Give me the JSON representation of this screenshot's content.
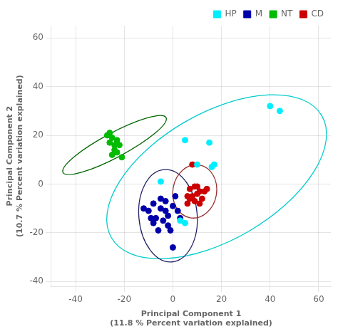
{
  "chart_data": {
    "type": "scatter",
    "xlabel": "Principal Component 1",
    "xlabel_sub": "(11.8 % Percent variation explained)",
    "ylabel": "Principal Component 2",
    "ylabel_sub": "(10.7 % Percent variation explained)",
    "xlim": [
      -50,
      65
    ],
    "ylim": [
      -42,
      65
    ],
    "xticks": [
      -40,
      -20,
      0,
      20,
      40,
      60
    ],
    "yticks": [
      -40,
      -20,
      0,
      20,
      40,
      60
    ],
    "grid": true,
    "legend": "upper right",
    "series": [
      {
        "name": "HP",
        "color": "#00EEFF",
        "values": [
          [
            -5,
            1
          ],
          [
            5,
            18
          ],
          [
            15,
            17
          ],
          [
            10,
            8
          ],
          [
            17,
            8
          ],
          [
            16,
            7
          ],
          [
            40,
            32
          ],
          [
            44,
            30
          ],
          [
            3,
            -15
          ],
          [
            5,
            -16
          ]
        ]
      },
      {
        "name": "M",
        "color": "#0000AA",
        "values": [
          [
            -8,
            -8
          ],
          [
            -5,
            -10
          ],
          [
            -3,
            -11
          ],
          [
            -10,
            -11
          ],
          [
            -7,
            -14
          ],
          [
            -4,
            -15
          ],
          [
            -2,
            -17
          ],
          [
            -6,
            -19
          ],
          [
            -1,
            -19
          ],
          [
            0,
            -26
          ],
          [
            -12,
            -10
          ],
          [
            -8,
            -16
          ],
          [
            -3,
            -7
          ],
          [
            0,
            -9
          ],
          [
            2,
            -11
          ],
          [
            3,
            -14
          ],
          [
            -5,
            -6
          ],
          [
            1,
            -5
          ],
          [
            -2,
            -13
          ],
          [
            -9,
            -14
          ]
        ]
      },
      {
        "name": "NT",
        "color": "#00BB00",
        "values": [
          [
            -25,
            19
          ],
          [
            -27,
            20
          ],
          [
            -26,
            17
          ],
          [
            -22,
            16
          ],
          [
            -24,
            14
          ],
          [
            -23,
            13
          ],
          [
            -25,
            12
          ],
          [
            -21,
            11
          ],
          [
            -23,
            18
          ],
          [
            -26,
            21
          ],
          [
            -24,
            16
          ]
        ]
      },
      {
        "name": "CD",
        "color": "#CC0000",
        "values": [
          [
            8,
            8
          ],
          [
            14,
            -2
          ],
          [
            10,
            -4
          ],
          [
            12,
            -6
          ],
          [
            7,
            -6
          ],
          [
            9,
            -7
          ],
          [
            11,
            -3
          ],
          [
            7,
            -2
          ],
          [
            13,
            -3
          ],
          [
            9,
            -1
          ],
          [
            6,
            -5
          ],
          [
            11,
            -8
          ],
          [
            8,
            -5
          ],
          [
            10,
            -1
          ],
          [
            6,
            -8
          ]
        ]
      }
    ],
    "ellipses": [
      {
        "color": "#00CCCC",
        "center_x": 18,
        "center_y": 3,
        "width": 100,
        "height": 52,
        "angle": 30
      },
      {
        "color": "#222266",
        "center_x": -2,
        "center_y": -13,
        "width": 24,
        "height": 38,
        "angle": 5
      },
      {
        "color": "#006600",
        "center_x": -24,
        "center_y": 16,
        "width": 10,
        "height": 48,
        "angle": -62
      },
      {
        "color": "#993333",
        "center_x": 9,
        "center_y": -3,
        "width": 18,
        "height": 22,
        "angle": -10
      }
    ]
  }
}
